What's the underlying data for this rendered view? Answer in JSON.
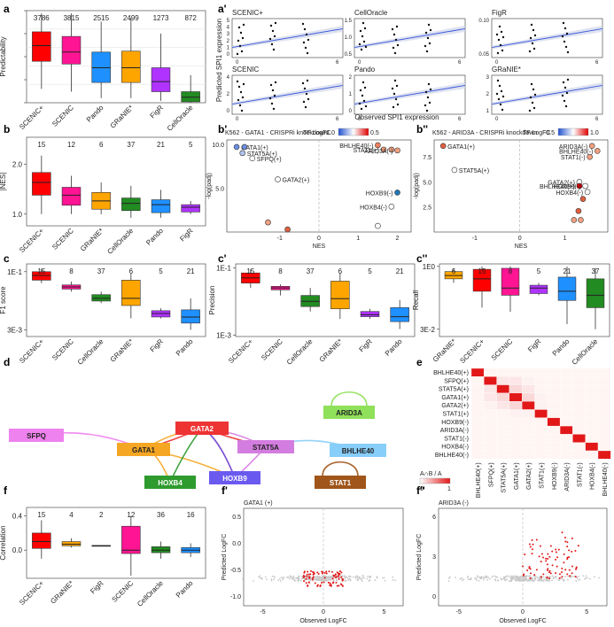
{
  "panel_labels": [
    "a",
    "a'",
    "b",
    "b'",
    "b''",
    "c",
    "c'",
    "c''",
    "d",
    "e",
    "f",
    "f'",
    "f''"
  ],
  "chart_data": [
    {
      "id": "a",
      "type": "box",
      "ylabel": "Predictability",
      "ylim": [
        0,
        1
      ],
      "log": false,
      "categories": [
        "SCENIC+",
        "SCENIC",
        "Pando",
        "GRaNIE*",
        "FigR",
        "CellOracle"
      ],
      "colors": [
        "#ff0000",
        "#ff1493",
        "#1e90ff",
        "#ffa500",
        "#b033ff",
        "#228b22"
      ],
      "counts": [
        "3786",
        "3815",
        "2515",
        "2499",
        "1273",
        "872"
      ],
      "boxes": [
        {
          "lo": 0.15,
          "q1": 0.45,
          "med": 0.62,
          "q3": 0.77,
          "hi": 0.97
        },
        {
          "lo": 0.12,
          "q1": 0.42,
          "med": 0.55,
          "q3": 0.72,
          "hi": 0.97
        },
        {
          "lo": 0.05,
          "q1": 0.22,
          "med": 0.38,
          "q3": 0.55,
          "hi": 0.88
        },
        {
          "lo": 0.05,
          "q1": 0.22,
          "med": 0.38,
          "q3": 0.56,
          "hi": 0.92
        },
        {
          "lo": 0.02,
          "q1": 0.12,
          "med": 0.23,
          "q3": 0.38,
          "hi": 0.75
        },
        {
          "lo": 0.0,
          "q1": 0.01,
          "med": 0.06,
          "q3": 0.12,
          "hi": 0.3
        }
      ]
    },
    {
      "id": "b",
      "type": "box",
      "ylabel": "|NES|",
      "ylim": [
        0.85,
        2.9
      ],
      "log": true,
      "categories": [
        "SCENIC+",
        "SCENIC",
        "GRaNIE*",
        "CellOracle",
        "Pando",
        "FigR"
      ],
      "colors": [
        "#ff0000",
        "#ff1493",
        "#ffa500",
        "#228b22",
        "#1e90ff",
        "#b033ff"
      ],
      "counts": [
        "15",
        "12",
        "6",
        "37",
        "21",
        "5"
      ],
      "yticks": [
        {
          "v": 1.0,
          "label": "1.0"
        },
        {
          "v": 2.0,
          "label": "2.0"
        }
      ],
      "boxes": [
        {
          "lo": 1.0,
          "q1": 1.3,
          "med": 1.55,
          "q3": 1.78,
          "hi": 2.25
        },
        {
          "lo": 1.0,
          "q1": 1.13,
          "med": 1.3,
          "q3": 1.45,
          "hi": 1.7
        },
        {
          "lo": 1.0,
          "q1": 1.07,
          "med": 1.2,
          "q3": 1.35,
          "hi": 1.55
        },
        {
          "lo": 0.95,
          "q1": 1.05,
          "med": 1.16,
          "q3": 1.25,
          "hi": 1.48
        },
        {
          "lo": 0.95,
          "q1": 1.02,
          "med": 1.14,
          "q3": 1.22,
          "hi": 1.4
        },
        {
          "lo": 1.0,
          "q1": 1.03,
          "med": 1.1,
          "q3": 1.14,
          "hi": 1.2
        }
      ]
    },
    {
      "id": "c",
      "type": "box",
      "ylabel": "F1 score",
      "ylim": [
        0.002,
        0.16
      ],
      "log": true,
      "categories": [
        "SCENIC+",
        "SCENIC",
        "CellOracle",
        "GRaNIE*",
        "FigR",
        "Pando"
      ],
      "colors": [
        "#ff0000",
        "#ff1493",
        "#228b22",
        "#ffa500",
        "#b033ff",
        "#1e90ff"
      ],
      "counts": [
        "15",
        "8",
        "37",
        "6",
        "5",
        "21"
      ],
      "yticks": [
        {
          "v": 0.1,
          "label": "1E-1"
        },
        {
          "v": 0.003,
          "label": "3E-3"
        }
      ],
      "boxes": [
        {
          "lo": 0.05,
          "q1": 0.06,
          "med": 0.08,
          "q3": 0.1,
          "hi": 0.12
        },
        {
          "lo": 0.03,
          "q1": 0.035,
          "med": 0.04,
          "q3": 0.045,
          "hi": 0.055
        },
        {
          "lo": 0.015,
          "q1": 0.017,
          "med": 0.02,
          "q3": 0.025,
          "hi": 0.03
        },
        {
          "lo": 0.006,
          "q1": 0.013,
          "med": 0.02,
          "q3": 0.06,
          "hi": 0.09
        },
        {
          "lo": 0.006,
          "q1": 0.0065,
          "med": 0.008,
          "q3": 0.0095,
          "hi": 0.011
        },
        {
          "lo": 0.003,
          "q1": 0.0045,
          "med": 0.0065,
          "q3": 0.01,
          "hi": 0.02
        }
      ]
    },
    {
      "id": "c'",
      "type": "box",
      "ylabel": "Precision",
      "ylim": [
        0.0009,
        0.13
      ],
      "log": true,
      "categories": [
        "SCENIC+",
        "SCENIC",
        "CellOracle",
        "GRaNIE*",
        "FigR",
        "Pando"
      ],
      "colors": [
        "#ff0000",
        "#ff1493",
        "#228b22",
        "#ffa500",
        "#b033ff",
        "#1e90ff"
      ],
      "counts": [
        "15",
        "8",
        "37",
        "6",
        "5",
        "21"
      ],
      "yticks": [
        {
          "v": 0.1,
          "label": "1E-1"
        },
        {
          "v": 0.001,
          "label": "1E-3"
        }
      ],
      "boxes": [
        {
          "lo": 0.025,
          "q1": 0.035,
          "med": 0.05,
          "q3": 0.07,
          "hi": 0.09
        },
        {
          "lo": 0.015,
          "q1": 0.022,
          "med": 0.025,
          "q3": 0.028,
          "hi": 0.032
        },
        {
          "lo": 0.005,
          "q1": 0.007,
          "med": 0.01,
          "q3": 0.015,
          "hi": 0.025
        },
        {
          "lo": 0.003,
          "q1": 0.006,
          "med": 0.012,
          "q3": 0.04,
          "hi": 0.07
        },
        {
          "lo": 0.003,
          "q1": 0.0035,
          "med": 0.004,
          "q3": 0.005,
          "hi": 0.006
        },
        {
          "lo": 0.0015,
          "q1": 0.0025,
          "med": 0.0035,
          "q3": 0.0065,
          "hi": 0.011
        }
      ]
    },
    {
      "id": "c''",
      "type": "box",
      "ylabel": "Recall",
      "ylim": [
        0.02,
        1.15
      ],
      "log": true,
      "categories": [
        "GRaNIE*",
        "SCENIC+",
        "SCENIC",
        "FigR",
        "Pando",
        "CellOracle"
      ],
      "colors": [
        "#ffa500",
        "#ff0000",
        "#ff1493",
        "#b033ff",
        "#1e90ff",
        "#228b22"
      ],
      "counts": [
        "6",
        "15",
        "8",
        "5",
        "21",
        "37"
      ],
      "yticks": [
        {
          "v": 1.0,
          "label": "1E0"
        },
        {
          "v": 0.03,
          "label": "3E-2"
        }
      ],
      "boxes": [
        {
          "lo": 0.4,
          "q1": 0.5,
          "med": 0.6,
          "q3": 0.75,
          "hi": 0.9
        },
        {
          "lo": 0.1,
          "q1": 0.25,
          "med": 0.5,
          "q3": 0.85,
          "hi": 1.0
        },
        {
          "lo": 0.08,
          "q1": 0.2,
          "med": 0.3,
          "q3": 0.9,
          "hi": 1.0
        },
        {
          "lo": 0.2,
          "q1": 0.22,
          "med": 0.3,
          "q3": 0.35,
          "hi": 0.4
        },
        {
          "lo": 0.04,
          "q1": 0.15,
          "med": 0.25,
          "q3": 0.55,
          "hi": 1.0
        },
        {
          "lo": 0.03,
          "q1": 0.1,
          "med": 0.2,
          "q3": 0.5,
          "hi": 0.9
        }
      ]
    },
    {
      "id": "f",
      "type": "box",
      "ylabel": "Correlation",
      "ylim": [
        -0.33,
        0.5
      ],
      "log": false,
      "categories": [
        "SCENIC+",
        "GRaNIE*",
        "FigR",
        "SCENIC",
        "CellOracle",
        "Pando"
      ],
      "colors": [
        "#ff0000",
        "#ffa500",
        "#b033ff",
        "#ff1493",
        "#228b22",
        "#1e90ff"
      ],
      "counts": [
        "15",
        "4",
        "2",
        "12",
        "36",
        "16"
      ],
      "yticks": [
        {
          "v": 0.4,
          "label": "0.4"
        },
        {
          "v": 0.0,
          "label": "0.0"
        }
      ],
      "boxes": [
        {
          "lo": -0.1,
          "q1": 0.02,
          "med": 0.1,
          "q3": 0.2,
          "hi": 0.35
        },
        {
          "lo": 0.03,
          "q1": 0.05,
          "med": 0.07,
          "q3": 0.1,
          "hi": 0.14
        },
        {
          "lo": 0.05,
          "q1": 0.05,
          "med": 0.05,
          "q3": 0.055,
          "hi": 0.06
        },
        {
          "lo": -0.3,
          "q1": -0.04,
          "med": 0.0,
          "q3": 0.28,
          "hi": 0.4
        },
        {
          "lo": -0.1,
          "q1": -0.03,
          "med": 0.0,
          "q3": 0.04,
          "hi": 0.1
        },
        {
          "lo": -0.08,
          "q1": -0.03,
          "med": 0.0,
          "q3": 0.03,
          "hi": 0.08
        }
      ]
    },
    {
      "id": "a'",
      "type": "scatter",
      "xlabel": "Observed SPI1 expression",
      "ylabel": "Predicted SPI1 expression",
      "facets": [
        {
          "title": "SCENIC+",
          "yticks": [
            "5",
            "4",
            "3",
            "2",
            "1",
            "0"
          ]
        },
        {
          "title": "CellOracle",
          "yticks": [
            "1.5",
            "1.0",
            "0.5"
          ]
        },
        {
          "title": "FigR",
          "yticks": [
            "0.10",
            "0.05"
          ]
        },
        {
          "title": "SCENIC",
          "yticks": [
            "4",
            "2",
            "0"
          ]
        },
        {
          "title": "Pando",
          "yticks": [
            "2",
            "1",
            "0"
          ]
        },
        {
          "title": "GRaNIE*",
          "yticks": [
            "3",
            "2",
            "1"
          ]
        }
      ],
      "xticks": [
        "0",
        "6"
      ]
    },
    {
      "id": "b'",
      "type": "scatter",
      "title": "K562 - GATA1 - CRISPRi knockdown",
      "legend_title": "TF LogFC",
      "legend_min": "-1.0",
      "legend_max": "0.5",
      "xlabel": "NES",
      "ylabel": "-log(padj)",
      "xticks": [
        "-1",
        "0",
        "1",
        "2"
      ],
      "yticks": [
        "10.0",
        "5.0"
      ],
      "points": [
        {
          "x": -2.1,
          "y": 9.7,
          "label": "GATA1(+)",
          "color": "#6b8ee0"
        },
        {
          "x": -1.9,
          "y": 9.7,
          "label": "",
          "color": "#6b8ee0"
        },
        {
          "x": -1.95,
          "y": 9.0,
          "label": "STAT5A(+)",
          "color": "#b0c4f0"
        },
        {
          "x": -1.7,
          "y": 8.4,
          "label": "SFPQ(+)",
          "color": "#ffffff"
        },
        {
          "x": -1.05,
          "y": 6.0,
          "label": "GATA2(+)",
          "color": "#ffffff"
        },
        {
          "x": 1.5,
          "y": 9.9,
          "label": "BHLHE40(-)",
          "color": "#f08060"
        },
        {
          "x": 1.65,
          "y": 9.4,
          "label": "STAT1(+)",
          "color": "#f2a080"
        },
        {
          "x": 1.85,
          "y": 9.4,
          "label": "",
          "color": "#f2a080"
        },
        {
          "x": 2.0,
          "y": 9.3,
          "label": "ARID3A(-)",
          "color": "#f2a080"
        },
        {
          "x": 2.0,
          "y": 4.5,
          "label": "HOXB9(-)",
          "color": "#1f77b4"
        },
        {
          "x": 1.85,
          "y": 2.9,
          "label": "HOXB4(-)",
          "color": "#ffffff"
        },
        {
          "x": -1.3,
          "y": 1.1,
          "label": "",
          "color": "#f2a080"
        },
        {
          "x": -0.8,
          "y": 0.3,
          "label": "",
          "color": "#e06040"
        },
        {
          "x": 1.5,
          "y": 0.7,
          "label": "",
          "color": "#ffffff"
        }
      ]
    },
    {
      "id": "b''",
      "type": "scatter",
      "title": "K562 - ARID3A - CRISPRi knockdown",
      "legend_title": "TF LogFC",
      "legend_min": "-0.5",
      "legend_max": "1.0",
      "xlabel": "NES",
      "ylabel": "-log(padj)",
      "xticks": [
        "-1",
        "0",
        "1"
      ],
      "yticks": [
        "7.5",
        "5.0",
        "2.5"
      ],
      "points": [
        {
          "x": -1.7,
          "y": 8.6,
          "label": "GATA1(+)",
          "color": "#e06040"
        },
        {
          "x": -1.45,
          "y": 6.2,
          "label": "STAT5A(+)",
          "color": "#ffffff"
        },
        {
          "x": 1.6,
          "y": 8.6,
          "label": "ARID3A(-)",
          "color": "#f2a080"
        },
        {
          "x": 1.72,
          "y": 8.1,
          "label": "BHLHE40(-)",
          "color": "#f2a080"
        },
        {
          "x": 1.55,
          "y": 7.5,
          "label": "STAT1(-)",
          "color": "#f2a080"
        },
        {
          "x": 1.32,
          "y": 5.0,
          "label": "GATA2(+)",
          "color": "#ffffff"
        },
        {
          "x": 1.32,
          "y": 4.6,
          "label": "BHLHE40(+)",
          "color": "#e00000"
        },
        {
          "x": 1.45,
          "y": 4.6,
          "label": "HOXB9(-)",
          "color": "#ffffff"
        },
        {
          "x": 1.5,
          "y": 4.0,
          "label": "HOXB4(-)",
          "color": "#ffffff"
        },
        {
          "x": 1.4,
          "y": 3.3,
          "label": "",
          "color": "#e06040"
        },
        {
          "x": 1.3,
          "y": 2.1,
          "label": "",
          "color": "#e06040"
        },
        {
          "x": 1.2,
          "y": 1.2,
          "label": "",
          "color": "#f2a080"
        },
        {
          "x": 1.35,
          "y": 1.2,
          "label": "",
          "color": "#f2a080"
        }
      ]
    },
    {
      "id": "e",
      "type": "heatmap",
      "rows": [
        "BHLHE40(+)",
        "SFPQ(+)",
        "STAT5A(+)",
        "GATA1(+)",
        "GATA2(+)",
        "STAT1(+)",
        "HOXB9(-)",
        "ARID3A(-)",
        "STAT1(-)",
        "HOXB4(-)",
        "BHLHE40(-)"
      ],
      "cols": [
        "BHLHE40(+)",
        "SFPQ(+)",
        "STAT5A(+)",
        "GATA1(+)",
        "GATA2(+)",
        "STAT1(+)",
        "HOXB9(-)",
        "ARID3A(-)",
        "STAT1(-)",
        "HOXB4(-)",
        "BHLHE40(-)"
      ],
      "legend_title": "A∩B / A",
      "legend_min": "0",
      "legend_max": "1",
      "values": [
        [
          1,
          0,
          0,
          0,
          0,
          0,
          0,
          0,
          0,
          0,
          0
        ],
        [
          0,
          1,
          0.2,
          0.2,
          0.1,
          0,
          0,
          0,
          0,
          0,
          0
        ],
        [
          0,
          0.2,
          1,
          0.3,
          0.2,
          0,
          0,
          0,
          0,
          0,
          0
        ],
        [
          0,
          0.2,
          0.3,
          1,
          0.3,
          0.1,
          0,
          0,
          0,
          0,
          0
        ],
        [
          0,
          0.1,
          0.2,
          0.3,
          1,
          0.1,
          0,
          0,
          0,
          0,
          0
        ],
        [
          0,
          0,
          0,
          0.1,
          0.1,
          1,
          0,
          0,
          0,
          0,
          0
        ],
        [
          0,
          0,
          0,
          0,
          0,
          0,
          1,
          0,
          0,
          0,
          0
        ],
        [
          0,
          0,
          0,
          0,
          0,
          0,
          0,
          1,
          0,
          0,
          0
        ],
        [
          0,
          0,
          0,
          0,
          0,
          0,
          0,
          0,
          1,
          0,
          0
        ],
        [
          0,
          0,
          0,
          0,
          0,
          0,
          0,
          0,
          0,
          1,
          0
        ],
        [
          0,
          0,
          0,
          0,
          0,
          0,
          0,
          0,
          0,
          0,
          1
        ]
      ]
    },
    {
      "id": "f'",
      "type": "scatter",
      "title": "GATA1 (+)",
      "xlabel": "Observed LogFC",
      "ylabel": "Predicted LogFC",
      "xticks": [
        "-5",
        "0",
        "5"
      ],
      "yticks": [
        "0.5",
        "0.0",
        "-0.5",
        "-1.0"
      ]
    },
    {
      "id": "f''",
      "type": "scatter",
      "title": "ARID3A (-)",
      "xlabel": "Observed LogFC",
      "ylabel": "Predicted LogFC",
      "xticks": [
        "-5",
        "0",
        "5"
      ],
      "yticks": [
        "6",
        "3",
        "0"
      ]
    }
  ],
  "network": {
    "nodes": [
      {
        "id": "SFPQ",
        "label": "SFPQ",
        "color": "#ee82ee"
      },
      {
        "id": "GATA1",
        "label": "GATA1",
        "color": "#f5a623"
      },
      {
        "id": "GATA2",
        "label": "GATA2",
        "color": "#ee3333"
      },
      {
        "id": "STAT5A",
        "label": "STAT5A",
        "color": "#d47de0"
      },
      {
        "id": "ARID3A",
        "label": "ARID3A",
        "color": "#8fe05a"
      },
      {
        "id": "BHLHE40",
        "label": "BHLHE40",
        "color": "#87cefa"
      },
      {
        "id": "HOXB4",
        "label": "HOXB4",
        "color": "#2e9b2e"
      },
      {
        "id": "HOXB9",
        "label": "HOXB9",
        "color": "#6a5aef"
      },
      {
        "id": "STAT1",
        "label": "STAT1",
        "color": "#a0551a"
      }
    ],
    "edges": [
      {
        "from": "SFPQ",
        "to": "GATA1",
        "color": "#ee82ee"
      },
      {
        "from": "GATA1",
        "to": "GATA2",
        "color": "#f5a623"
      },
      {
        "from": "GATA2",
        "to": "GATA1",
        "color": "#ee3333"
      },
      {
        "from": "GATA1",
        "to": "HOXB4",
        "color": "#f5a623"
      },
      {
        "from": "GATA1",
        "to": "HOXB9",
        "color": "#f5a623"
      },
      {
        "from": "GATA2",
        "to": "STAT5A",
        "color": "#ee3333"
      },
      {
        "from": "GATA2",
        "to": "HOXB9",
        "color": "#ee3333"
      },
      {
        "from": "STAT5A",
        "to": "GATA2",
        "color": "#d47de0"
      },
      {
        "from": "STAT5A",
        "to": "HOXB9",
        "color": "#d47de0"
      },
      {
        "from": "STAT5A",
        "to": "BHLHE40",
        "color": "#87cefa"
      },
      {
        "from": "ARID3A",
        "to": "ARID3A",
        "color": "#8fe05a"
      },
      {
        "from": "STAT1",
        "to": "STAT1",
        "color": "#a0551a"
      },
      {
        "from": "HOXB9",
        "to": "GATA2",
        "color": "#6a5aef"
      },
      {
        "from": "HOXB4",
        "to": "GATA2",
        "color": "#2e9b2e"
      }
    ]
  }
}
